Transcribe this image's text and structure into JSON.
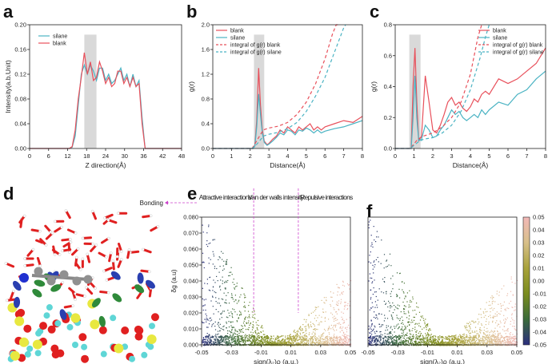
{
  "figure": {
    "panel_letters": [
      "a",
      "b",
      "c",
      "d",
      "e",
      "f"
    ],
    "colors": {
      "red": "#e8505b",
      "cyan": "#4bb3c3",
      "shade": "#d9d9d9",
      "magenta": "#cc44cc",
      "cmap": [
        "#2b2e7e",
        "#3a6b3a",
        "#7a8c1f",
        "#a8a23a",
        "#d8c08a",
        "#f2b8b8"
      ]
    }
  },
  "chart_data": [
    {
      "id": "a",
      "type": "line",
      "xlabel": "Z direction(Å)",
      "ylabel": "Intensity(a.b.Unit)",
      "xlim": [
        0,
        50
      ],
      "ylim": [
        0,
        0.2
      ],
      "xticks": [
        "0",
        "6",
        "12",
        "18",
        "24",
        "30",
        "36",
        "42",
        "48"
      ],
      "yticks": [
        "0.00",
        "0.04",
        "0.08",
        "0.12",
        "0.16",
        "0.20"
      ],
      "legend": [
        "silane",
        "blank"
      ],
      "highlight_x": [
        18,
        22
      ],
      "series": [
        {
          "name": "silane",
          "color": "cyan",
          "x": [
            0,
            13,
            14,
            15,
            16,
            17,
            18,
            19,
            20,
            21,
            22,
            23,
            24,
            25,
            26,
            27,
            28,
            29,
            30,
            31,
            32,
            33,
            34,
            35,
            36,
            37,
            38,
            50
          ],
          "y": [
            0,
            0,
            0.002,
            0.02,
            0.07,
            0.12,
            0.135,
            0.12,
            0.135,
            0.125,
            0.11,
            0.13,
            0.13,
            0.11,
            0.12,
            0.105,
            0.11,
            0.12,
            0.13,
            0.11,
            0.12,
            0.1,
            0.12,
            0.1,
            0.11,
            0.05,
            0,
            0
          ]
        },
        {
          "name": "blank",
          "color": "red",
          "x": [
            0,
            13,
            14,
            15,
            16,
            17,
            18,
            19,
            20,
            21,
            22,
            23,
            24,
            25,
            26,
            27,
            28,
            29,
            30,
            31,
            32,
            33,
            34,
            35,
            36,
            37,
            38,
            50
          ],
          "y": [
            0,
            0,
            0.003,
            0.03,
            0.08,
            0.115,
            0.155,
            0.12,
            0.14,
            0.11,
            0.115,
            0.14,
            0.125,
            0.105,
            0.115,
            0.1,
            0.105,
            0.125,
            0.125,
            0.105,
            0.115,
            0.1,
            0.115,
            0.1,
            0.105,
            0.04,
            0,
            0
          ]
        }
      ]
    },
    {
      "id": "b",
      "type": "line",
      "xlabel": "Distance(Å)",
      "ylabel": "g(r)",
      "xlim": [
        0,
        8
      ],
      "ylim": [
        0,
        2.0
      ],
      "xticks": [
        "0",
        "1",
        "2",
        "3",
        "4",
        "5",
        "6",
        "7",
        "8"
      ],
      "yticks": [
        "0.0",
        "0.4",
        "0.8",
        "1.2",
        "1.6",
        "2.0"
      ],
      "legend": [
        "blank",
        "silane",
        "integral of g(r) blank",
        "integral of g(r) silane"
      ],
      "highlight_x": [
        2.2,
        2.75
      ],
      "series": [
        {
          "name": "blank",
          "color": "red",
          "dash": false,
          "x": [
            0,
            2.15,
            2.25,
            2.35,
            2.45,
            2.55,
            2.65,
            2.75,
            2.9,
            3.0,
            3.2,
            3.4,
            3.6,
            3.8,
            4.0,
            4.2,
            4.4,
            4.6,
            4.8,
            5.0,
            5.2,
            5.4,
            5.6,
            5.8,
            6.0,
            6.5,
            7.0,
            7.5,
            8.0
          ],
          "y": [
            0,
            0,
            0.05,
            0.45,
            1.3,
            0.7,
            0.3,
            0.12,
            0.06,
            0.08,
            0.15,
            0.2,
            0.3,
            0.25,
            0.35,
            0.3,
            0.25,
            0.35,
            0.3,
            0.35,
            0.4,
            0.3,
            0.35,
            0.3,
            0.35,
            0.4,
            0.45,
            0.42,
            0.52
          ]
        },
        {
          "name": "silane",
          "color": "cyan",
          "dash": false,
          "x": [
            0,
            2.15,
            2.25,
            2.35,
            2.45,
            2.55,
            2.65,
            2.75,
            2.9,
            3.0,
            3.2,
            3.4,
            3.6,
            3.8,
            4.0,
            4.2,
            4.4,
            4.6,
            4.8,
            5.0,
            5.2,
            5.4,
            5.6,
            5.8,
            6.0,
            6.5,
            7.0,
            7.5,
            8.0
          ],
          "y": [
            0,
            0,
            0.04,
            0.35,
            0.88,
            0.55,
            0.25,
            0.1,
            0.05,
            0.07,
            0.12,
            0.18,
            0.25,
            0.22,
            0.3,
            0.28,
            0.22,
            0.3,
            0.28,
            0.33,
            0.3,
            0.25,
            0.3,
            0.25,
            0.28,
            0.32,
            0.35,
            0.4,
            0.45
          ]
        },
        {
          "name": "integral of g(r) blank",
          "color": "red",
          "dash": true,
          "x": [
            0,
            2.1,
            2.3,
            2.5,
            2.7,
            3.0,
            3.5,
            4.0,
            4.5,
            5.0,
            5.5,
            6.0,
            6.4,
            6.6,
            6.8
          ],
          "y": [
            0,
            0,
            0.1,
            0.2,
            0.3,
            0.33,
            0.36,
            0.42,
            0.55,
            0.75,
            1.05,
            1.45,
            1.85,
            2.0,
            2.0
          ]
        },
        {
          "name": "integral of g(r) silane",
          "color": "cyan",
          "dash": true,
          "x": [
            0,
            2.1,
            2.3,
            2.5,
            2.7,
            3.0,
            3.5,
            4.0,
            4.5,
            5.0,
            5.5,
            6.0,
            6.5,
            7.0,
            7.1
          ],
          "y": [
            0,
            0,
            0.05,
            0.12,
            0.2,
            0.23,
            0.26,
            0.32,
            0.42,
            0.6,
            0.85,
            1.15,
            1.55,
            1.95,
            2.0
          ]
        }
      ]
    },
    {
      "id": "c",
      "type": "line",
      "xlabel": "Distance(Å)",
      "ylabel": "g(r)",
      "xlim": [
        0,
        8
      ],
      "ylim": [
        0,
        0.8
      ],
      "xticks": [
        "0",
        "1",
        "2",
        "3",
        "4",
        "5",
        "6",
        "7",
        "8"
      ],
      "yticks": [
        "0.0",
        "0.2",
        "0.4",
        "0.6",
        "0.8"
      ],
      "legend": [
        "blank",
        "silane",
        "integral of g(r) blank",
        "integral of g(r) silane"
      ],
      "highlight_x": [
        0.75,
        1.35
      ],
      "series": [
        {
          "name": "blank",
          "color": "red",
          "dash": false,
          "x": [
            0,
            0.85,
            0.95,
            1.05,
            1.15,
            1.25,
            1.4,
            1.6,
            1.8,
            2.0,
            2.2,
            2.4,
            2.6,
            2.8,
            3.0,
            3.2,
            3.4,
            3.6,
            3.8,
            4.0,
            4.2,
            4.4,
            4.6,
            4.8,
            5.0,
            5.5,
            6.0,
            6.5,
            7.0,
            7.5,
            8.0
          ],
          "y": [
            0,
            0,
            0.4,
            0.65,
            0.3,
            0.05,
            0.08,
            0.47,
            0.3,
            0.12,
            0.1,
            0.15,
            0.22,
            0.3,
            0.33,
            0.28,
            0.3,
            0.26,
            0.24,
            0.27,
            0.32,
            0.3,
            0.35,
            0.37,
            0.35,
            0.45,
            0.42,
            0.45,
            0.5,
            0.55,
            0.65
          ]
        },
        {
          "name": "silane",
          "color": "cyan",
          "dash": false,
          "x": [
            0,
            0.85,
            0.95,
            1.05,
            1.15,
            1.25,
            1.4,
            1.6,
            1.8,
            2.0,
            2.2,
            2.4,
            2.6,
            2.8,
            3.0,
            3.2,
            3.4,
            3.6,
            3.8,
            4.0,
            4.2,
            4.4,
            4.6,
            4.8,
            5.0,
            5.5,
            6.0,
            6.5,
            7.0,
            7.5,
            8.0
          ],
          "y": [
            0,
            0,
            0.2,
            0.47,
            0.2,
            0.05,
            0.06,
            0.15,
            0.12,
            0.07,
            0.08,
            0.12,
            0.15,
            0.2,
            0.25,
            0.22,
            0.24,
            0.2,
            0.18,
            0.2,
            0.22,
            0.2,
            0.25,
            0.22,
            0.25,
            0.3,
            0.28,
            0.35,
            0.38,
            0.45,
            0.5
          ]
        },
        {
          "name": "integral of g(r) blank",
          "color": "red",
          "dash": true,
          "x": [
            0,
            0.8,
            1.0,
            1.2,
            1.5,
            2.0,
            2.5,
            3.0,
            3.5,
            4.0,
            4.2,
            4.4,
            4.6
          ],
          "y": [
            0,
            0,
            0.03,
            0.06,
            0.08,
            0.1,
            0.14,
            0.2,
            0.3,
            0.48,
            0.6,
            0.72,
            0.8
          ]
        },
        {
          "name": "integral of g(r) silane",
          "color": "cyan",
          "dash": true,
          "x": [
            0,
            0.8,
            1.0,
            1.2,
            1.5,
            2.0,
            2.5,
            3.0,
            3.5,
            4.0,
            4.5,
            4.8,
            5.0
          ],
          "y": [
            0,
            0,
            0.02,
            0.04,
            0.06,
            0.07,
            0.1,
            0.15,
            0.24,
            0.38,
            0.58,
            0.72,
            0.8
          ]
        }
      ]
    },
    {
      "id": "e",
      "type": "scatter",
      "xlabel": "sign(λ₂)ρ (a.u.)",
      "ylabel": "δg (a.u)",
      "xlim": [
        -0.05,
        0.05
      ],
      "ylim": [
        0,
        0.08
      ],
      "xticks": [
        "-0.05",
        "-0.03",
        "-0.01",
        "0.01",
        "0.03",
        "0.05"
      ],
      "yticks": [
        "0.000",
        "0.010",
        "0.020",
        "0.030",
        "0.040",
        "0.050",
        "0.060",
        "0.070",
        "0.080"
      ],
      "regions": [
        "Attractive interactions",
        "Van der walls intensity",
        "Repulsive interactions"
      ],
      "region_dividers_x": [
        -0.015,
        0.015
      ],
      "annotation": "Bonding"
    },
    {
      "id": "f",
      "type": "scatter",
      "xlabel": "sign(λ₂)ρ (a.u.)",
      "ylabel": "",
      "xlim": [
        -0.05,
        0.05
      ],
      "ylim": [
        0,
        0.08
      ],
      "xticks": [
        "-0.05",
        "-0.03",
        "-0.01",
        "0.01",
        "0.03",
        "0.05"
      ],
      "colorbar_ticks": [
        "0.05",
        "0.04",
        "0.03",
        "0.02",
        "0.01",
        "0.00",
        "-0.01",
        "-0.02",
        "-0.03",
        "-0.04",
        "-0.05"
      ]
    }
  ]
}
